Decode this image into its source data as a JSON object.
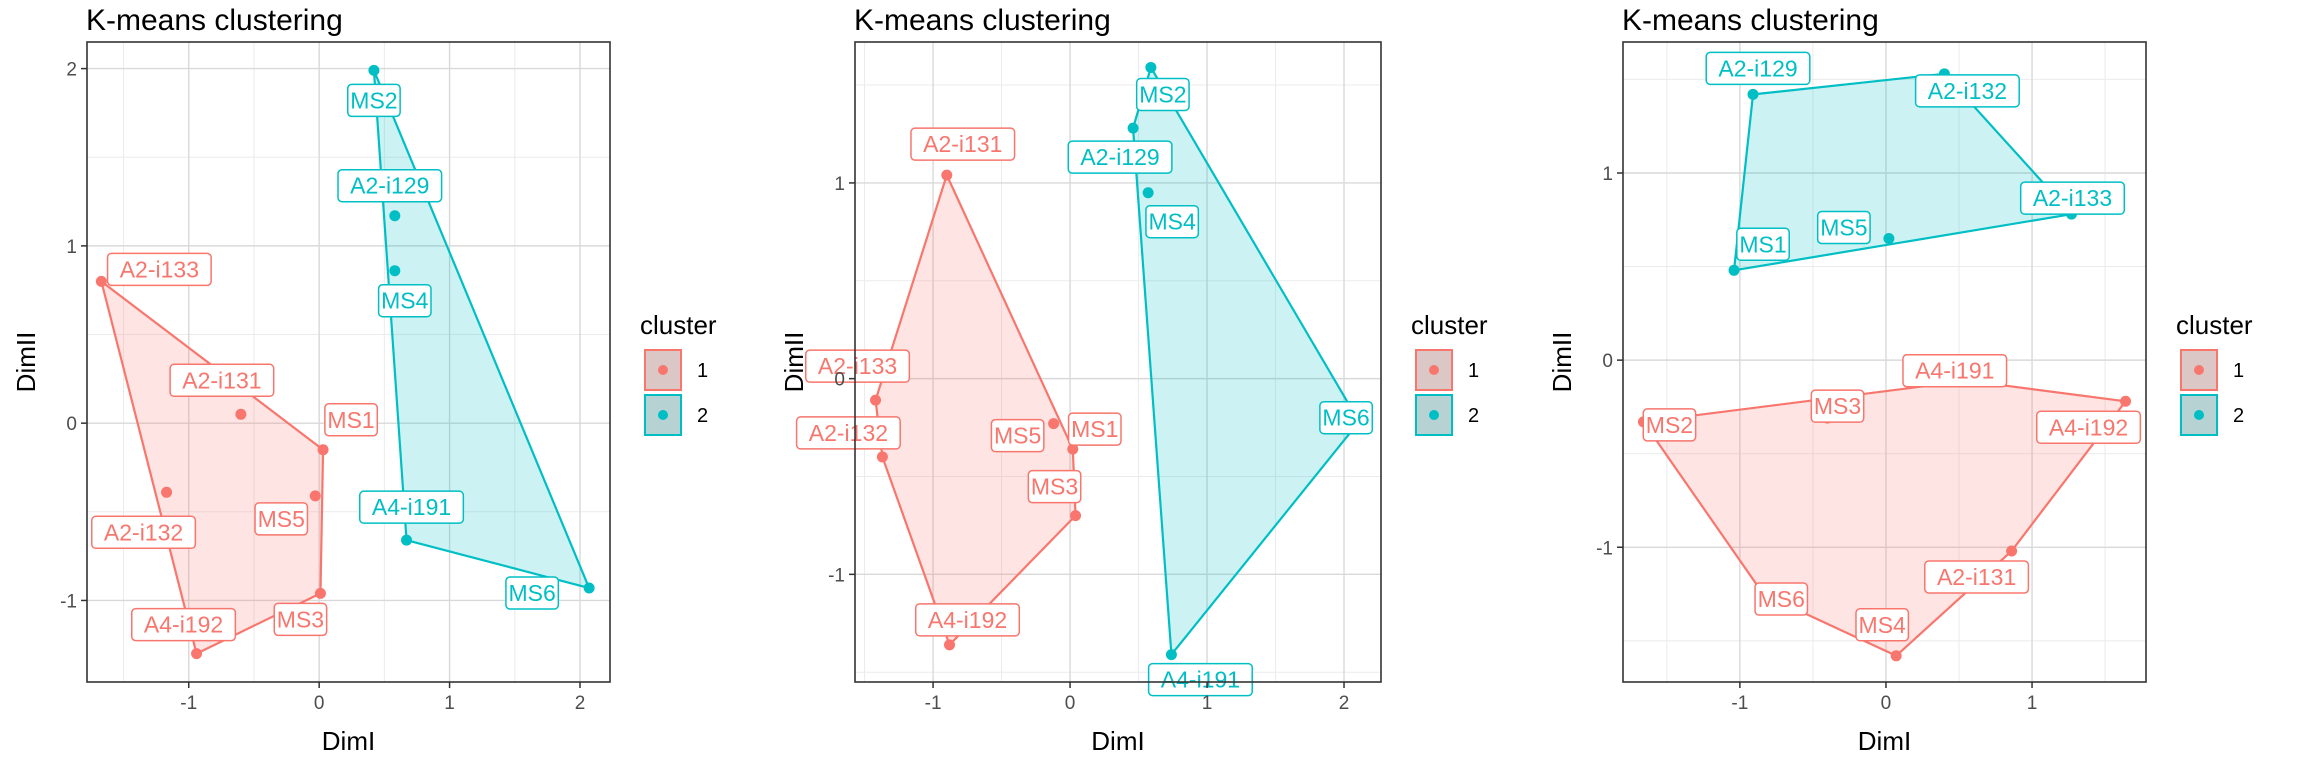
{
  "colors": {
    "cluster1": "#F8766D",
    "cluster2": "#00BFC4"
  },
  "legend": {
    "title": "cluster",
    "items": [
      "1",
      "2"
    ]
  },
  "chart_data": [
    {
      "type": "scatter",
      "title": "K-means clustering",
      "xlabel": "DimI",
      "ylabel": "DimII",
      "xlim": [
        -1.78,
        2.23
      ],
      "ylim": [
        -1.46,
        2.15
      ],
      "x_ticks": [
        -1,
        0,
        1,
        2
      ],
      "y_ticks": [
        -1,
        0,
        1,
        2
      ],
      "grid": true,
      "points": [
        {
          "name": "MS2",
          "x": 0.42,
          "y": 1.99,
          "cluster": "2"
        },
        {
          "name": "A2-i129",
          "x": 0.58,
          "y": 1.17,
          "cluster": "2"
        },
        {
          "name": "MS4",
          "x": 0.58,
          "y": 0.86,
          "cluster": "2"
        },
        {
          "name": "A4-i191",
          "x": 0.67,
          "y": -0.66,
          "cluster": "2"
        },
        {
          "name": "MS6",
          "x": 2.07,
          "y": -0.93,
          "cluster": "2"
        },
        {
          "name": "A2-i133",
          "x": -1.67,
          "y": 0.8,
          "cluster": "1"
        },
        {
          "name": "A2-i131",
          "x": -0.6,
          "y": 0.05,
          "cluster": "1"
        },
        {
          "name": "MS1",
          "x": 0.03,
          "y": -0.15,
          "cluster": "1"
        },
        {
          "name": "A2-i132",
          "x": -1.17,
          "y": -0.39,
          "cluster": "1"
        },
        {
          "name": "MS5",
          "x": -0.03,
          "y": -0.41,
          "cluster": "1"
        },
        {
          "name": "MS3",
          "x": 0.01,
          "y": -0.96,
          "cluster": "1"
        },
        {
          "name": "A4-i192",
          "x": -0.94,
          "y": -1.3,
          "cluster": "1"
        }
      ]
    },
    {
      "type": "scatter",
      "title": "K-means clustering",
      "xlabel": "DimI",
      "ylabel": "DimII",
      "xlim": [
        -1.57,
        2.27
      ],
      "ylim": [
        -1.55,
        1.72
      ],
      "x_ticks": [
        -1,
        0,
        1,
        2
      ],
      "y_ticks": [
        -1,
        0,
        1
      ],
      "grid": true,
      "points": [
        {
          "name": "A2-i131",
          "x": -0.9,
          "y": 1.04,
          "cluster": "1"
        },
        {
          "name": "A2-i133",
          "x": -1.42,
          "y": -0.11,
          "cluster": "1"
        },
        {
          "name": "MS5",
          "x": -0.12,
          "y": -0.23,
          "cluster": "1"
        },
        {
          "name": "A2-i132",
          "x": -1.37,
          "y": -0.4,
          "cluster": "1"
        },
        {
          "name": "MS1",
          "x": 0.02,
          "y": -0.36,
          "cluster": "1"
        },
        {
          "name": "MS3",
          "x": 0.04,
          "y": -0.7,
          "cluster": "1"
        },
        {
          "name": "A4-i192",
          "x": -0.88,
          "y": -1.36,
          "cluster": "1"
        },
        {
          "name": "MS2",
          "x": 0.59,
          "y": 1.59,
          "cluster": "2"
        },
        {
          "name": "A2-i129",
          "x": 0.46,
          "y": 1.28,
          "cluster": "2"
        },
        {
          "name": "MS4",
          "x": 0.57,
          "y": 0.95,
          "cluster": "2"
        },
        {
          "name": "MS6",
          "x": 2.11,
          "y": -0.22,
          "cluster": "2"
        },
        {
          "name": "A4-i191",
          "x": 0.74,
          "y": -1.41,
          "cluster": "2"
        }
      ]
    },
    {
      "type": "scatter",
      "title": "K-means clustering",
      "xlabel": "DimI",
      "ylabel": "DimII",
      "xlim": [
        -1.8,
        1.78
      ],
      "ylim": [
        -1.72,
        1.7
      ],
      "x_ticks": [
        -1,
        0,
        1
      ],
      "y_ticks": [
        -1,
        0,
        1
      ],
      "grid": true,
      "points": [
        {
          "name": "A2-i129",
          "x": -0.91,
          "y": 1.42,
          "cluster": "2"
        },
        {
          "name": "A2-i132",
          "x": 0.4,
          "y": 1.53,
          "cluster": "2"
        },
        {
          "name": "MS1",
          "x": -1.04,
          "y": 0.48,
          "cluster": "2"
        },
        {
          "name": "MS5",
          "x": 0.02,
          "y": 0.65,
          "cluster": "2"
        },
        {
          "name": "A2-i133",
          "x": 1.27,
          "y": 0.78,
          "cluster": "2"
        },
        {
          "name": "A4-i191",
          "x": 0.56,
          "y": -0.11,
          "cluster": "1"
        },
        {
          "name": "MS3",
          "x": -0.4,
          "y": -0.31,
          "cluster": "1"
        },
        {
          "name": "MS2",
          "x": -1.66,
          "y": -0.33,
          "cluster": "1"
        },
        {
          "name": "A4-i192",
          "x": 1.64,
          "y": -0.22,
          "cluster": "1"
        },
        {
          "name": "A2-i131",
          "x": 0.86,
          "y": -1.02,
          "cluster": "1"
        },
        {
          "name": "MS6",
          "x": -0.84,
          "y": -1.25,
          "cluster": "1"
        },
        {
          "name": "MS4",
          "x": 0.07,
          "y": -1.58,
          "cluster": "1"
        }
      ]
    }
  ]
}
